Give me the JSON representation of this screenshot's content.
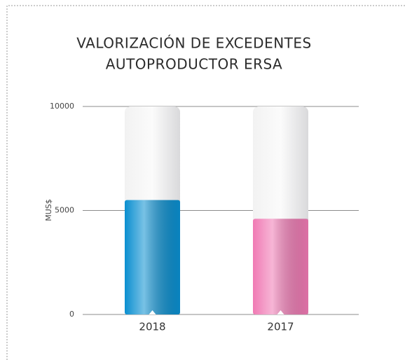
{
  "chart_data": {
    "type": "bar",
    "title": [
      "VALORIZACIÓN DE EXCEDENTES",
      "AUTOPRODUCTOR ERSA"
    ],
    "ylabel": "MUS$",
    "categories": [
      "2018",
      "2017"
    ],
    "values": [
      5500,
      4600
    ],
    "colors": [
      "#0a8fd0",
      "#f07ab4"
    ],
    "ylim": [
      0,
      10000
    ],
    "yticks": [
      0,
      5000,
      10000
    ],
    "grid": true
  }
}
